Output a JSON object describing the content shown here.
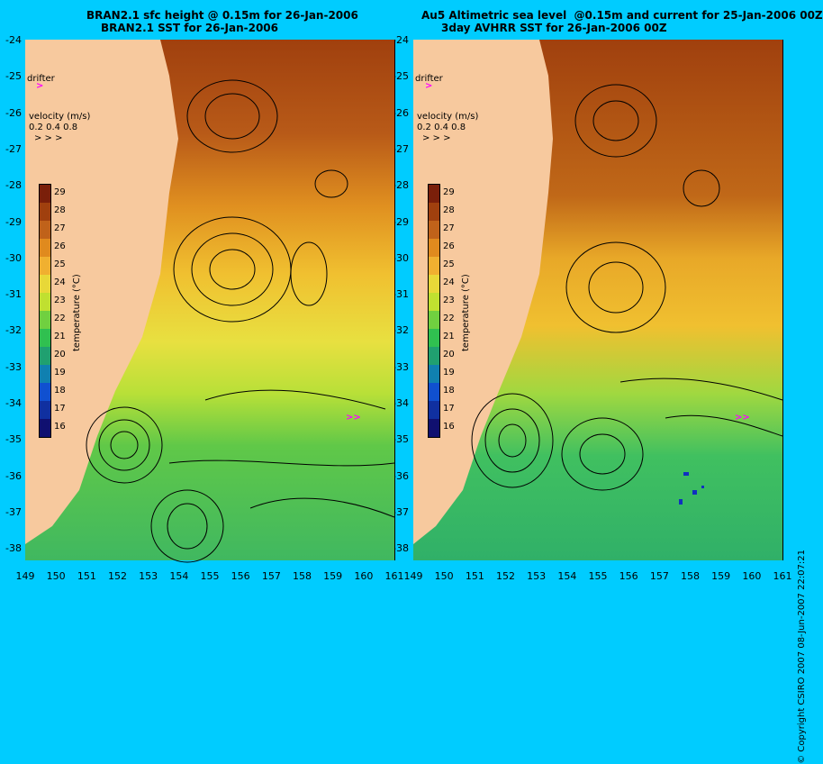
{
  "left_panel": {
    "title_line1": "BRAN2.1 sfc height @ 0.15m for 26-Jan-2006",
    "title_line2": "BRAN2.1 SST for 26-Jan-2006"
  },
  "right_panel": {
    "title_line1": "Au5 Altimetric sea level  @0.15m and current for 25-Jan-2006 00Z",
    "title_line2": "3day AVHRR SST for 26-Jan-2006 00Z"
  },
  "drifter_label": "drifter",
  "velocity": {
    "label": "velocity (m/s)",
    "scale": "0.2 0.4 0.8",
    "arrows": "> > >"
  },
  "colorbar": {
    "label": "temperature (°C)",
    "ticks": [
      "29",
      "28",
      "27",
      "26",
      "25",
      "24",
      "23",
      "22",
      "21",
      "20",
      "19",
      "18",
      "17",
      "16"
    ],
    "colors": [
      "#7a1f0a",
      "#a0400e",
      "#c0621a",
      "#e08a1e",
      "#f0b030",
      "#e8d838",
      "#c0e030",
      "#70d040",
      "#30c050",
      "#20a070",
      "#1080b0",
      "#1050d0",
      "#1030a0",
      "#101070"
    ]
  },
  "latitude_ticks": [
    "-24",
    "-25",
    "-26",
    "-27",
    "-28",
    "-29",
    "-30",
    "-31",
    "-32",
    "-33",
    "-34",
    "-35",
    "-36",
    "-37",
    "-38"
  ],
  "longitude_ticks": [
    "149",
    "150",
    "151",
    "152",
    "153",
    "154",
    "155",
    "156",
    "157",
    "158",
    "159",
    "160",
    "161"
  ],
  "copyright": "© Copyright CSIRO 2007 08-Jun-2007 22:07:21",
  "colors": {
    "background": "#00ccff",
    "land": "#f7c99e",
    "drifter": "#ff00ff"
  }
}
